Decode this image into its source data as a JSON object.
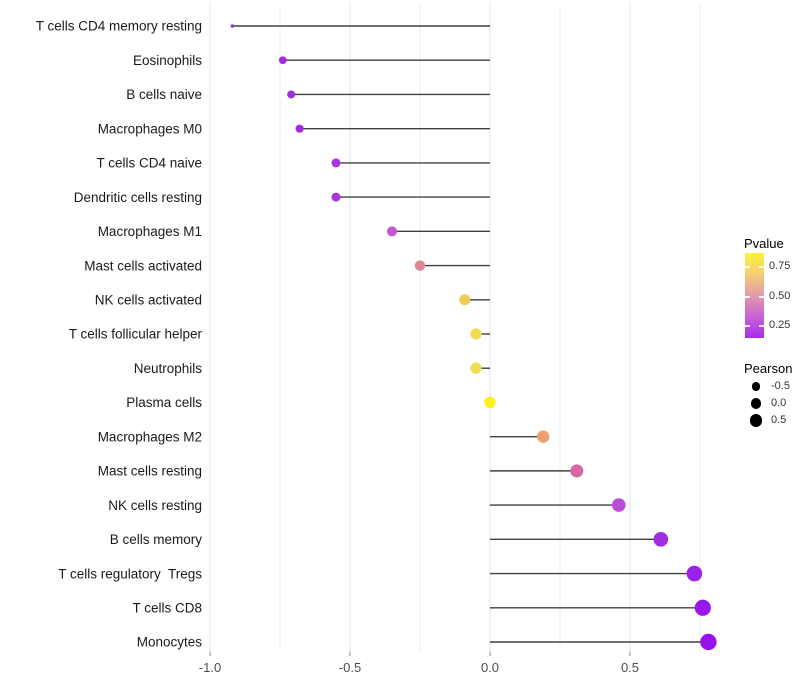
{
  "chart_data": {
    "type": "scatter",
    "variant": "horizontal-lollipop",
    "title": "",
    "xlabel": "",
    "ylabel": "",
    "background": "#ffffff",
    "x_axis": {
      "tick_values": [
        -1.0,
        -0.5,
        0.0,
        0.5
      ],
      "tick_labels": [
        "-1.0",
        "-0.5",
        "0.0",
        "0.5"
      ],
      "minor_gridlines": [
        -0.75,
        -0.25,
        0.25,
        0.75
      ],
      "range": [
        -1.13,
        0.84
      ],
      "label_color": "#4d4d4d",
      "tick_color": "#8a8a8a"
    },
    "grid": {
      "horizontal": false,
      "major_color": "#e4e4e4",
      "minor_color": "#efefef"
    },
    "stem_color": "#404040",
    "category_label_color": "#1a1a1a",
    "categories": [
      "T cells CD4 memory resting",
      "Eosinophils",
      "B cells naive",
      "Macrophages M0",
      "T cells CD4 naive",
      "Dendritic cells resting",
      "Macrophages M1",
      "Mast cells activated",
      "NK cells activated",
      "T cells follicular helper",
      "Neutrophils",
      "Plasma cells",
      "Macrophages M2",
      "Mast cells resting",
      "NK cells resting",
      "B cells memory",
      "T cells regulatory  Tregs",
      "T cells CD8",
      "Monocytes"
    ],
    "points": [
      {
        "label": "T cells CD4 memory resting",
        "pearson": -0.92,
        "color": "#9B33D8",
        "radius": 1.8
      },
      {
        "label": "Eosinophils",
        "pearson": -0.74,
        "color": "#A12BE0",
        "radius": 3.9
      },
      {
        "label": "B cells naive",
        "pearson": -0.71,
        "color": "#A12BE0",
        "radius": 4.0
      },
      {
        "label": "Macrophages M0",
        "pearson": -0.68,
        "color": "#A22EE0",
        "radius": 4.1
      },
      {
        "label": "T cells CD4 naive",
        "pearson": -0.55,
        "color": "#A637E2",
        "radius": 4.5
      },
      {
        "label": "Dendritic cells resting",
        "pearson": -0.55,
        "color": "#A637E2",
        "radius": 4.5
      },
      {
        "label": "Macrophages M1",
        "pearson": -0.35,
        "color": "#C556CE",
        "radius": 5.0
      },
      {
        "label": "Mast cells activated",
        "pearson": -0.25,
        "color": "#DE8492",
        "radius": 5.2
      },
      {
        "label": "NK cells activated",
        "pearson": -0.09,
        "color": "#EFCC55",
        "radius": 5.5
      },
      {
        "label": "T cells follicular helper",
        "pearson": -0.05,
        "color": "#F2DB55",
        "radius": 5.6
      },
      {
        "label": "Neutrophils",
        "pearson": -0.05,
        "color": "#F2DB55",
        "radius": 5.6
      },
      {
        "label": "Plasma cells",
        "pearson": 0.0,
        "color": "#F9F21C",
        "radius": 5.7
      },
      {
        "label": "Macrophages M2",
        "pearson": 0.19,
        "color": "#EDA26E",
        "radius": 6.2
      },
      {
        "label": "Mast cells resting",
        "pearson": 0.31,
        "color": "#D768A6",
        "radius": 6.5
      },
      {
        "label": "NK cells resting",
        "pearson": 0.46,
        "color": "#BB4CD6",
        "radius": 6.8
      },
      {
        "label": "B cells memory",
        "pearson": 0.61,
        "color": "#A32BE2",
        "radius": 7.3
      },
      {
        "label": "T cells regulatory  Tregs",
        "pearson": 0.73,
        "color": "#9B20E8",
        "radius": 7.8
      },
      {
        "label": "T cells CD8",
        "pearson": 0.76,
        "color": "#9717EA",
        "radius": 8.1
      },
      {
        "label": "Monocytes",
        "pearson": 0.78,
        "color": "#9614EB",
        "radius": 8.2
      }
    ],
    "legend": {
      "position": "right",
      "pvalue": {
        "title": "Pvalue",
        "tick_labels": [
          "0.75",
          "0.50",
          "0.25"
        ],
        "gradient_top_to_bottom": [
          {
            "color": "#FAF239",
            "pos": 0
          },
          {
            "color": "#F5CE74",
            "pos": 24
          },
          {
            "color": "#E399A9",
            "pos": 50
          },
          {
            "color": "#C95FD9",
            "pos": 76
          },
          {
            "color": "#A72CF0",
            "pos": 100
          }
        ]
      },
      "pearson": {
        "title": "Pearson",
        "dot_color": "#000000",
        "items": [
          {
            "label": "-0.5",
            "radius": 4.3
          },
          {
            "label": "0.0",
            "radius": 5.3
          },
          {
            "label": "0.5",
            "radius": 6.2
          }
        ]
      }
    }
  }
}
